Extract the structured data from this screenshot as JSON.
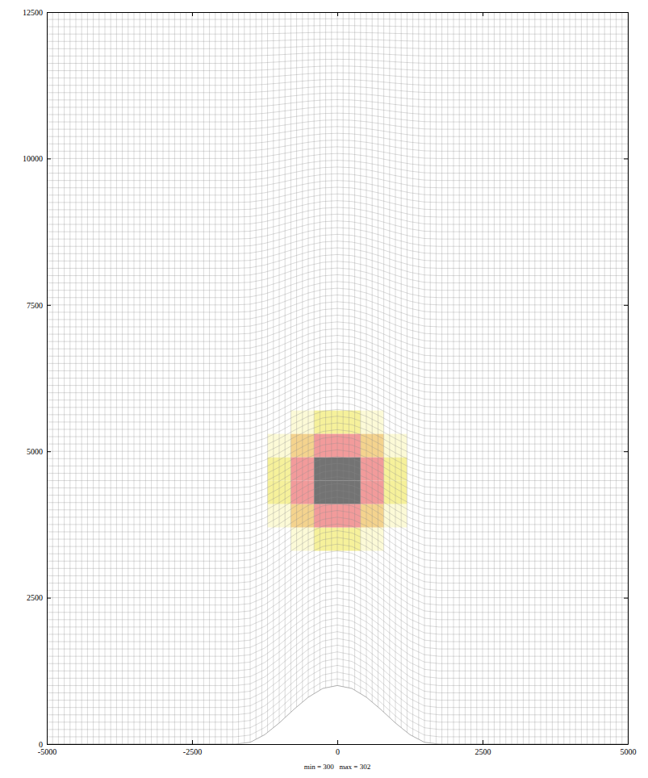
{
  "chart_data": {
    "type": "heatmap",
    "caption": "min = 300   max = 302",
    "xlim": [
      -5000,
      5000
    ],
    "xticks": [
      -5000,
      -2500,
      0,
      2500,
      5000
    ],
    "ylim": [
      0,
      12500
    ],
    "yticks": [
      0,
      2500,
      5000,
      7500,
      10000,
      12500
    ],
    "color_range": [
      300,
      302
    ],
    "terrain": {
      "x": [
        -5000,
        -4000,
        -3000,
        -2000,
        -1750,
        -1500,
        -1250,
        -1000,
        -750,
        -500,
        -250,
        0,
        250,
        500,
        750,
        1000,
        1250,
        1500,
        1750,
        2000,
        3000,
        4000,
        5000
      ],
      "y": [
        0,
        0,
        0,
        0,
        0,
        30,
        160,
        360,
        590,
        800,
        950,
        1000,
        950,
        800,
        590,
        360,
        160,
        30,
        0,
        0,
        0,
        0,
        0
      ]
    },
    "cells": {
      "x_edges": [
        -2000,
        -1600,
        -1200,
        -800,
        -400,
        0,
        400,
        800,
        1200,
        1600,
        2000
      ],
      "y_edges": [
        2500,
        2900,
        3300,
        3700,
        4100,
        4500,
        4900,
        5300,
        5700,
        6100,
        6500
      ],
      "values": [
        [
          300,
          300,
          300,
          300,
          300,
          300,
          300,
          300,
          300,
          300
        ],
        [
          300,
          300,
          300,
          300,
          300,
          300,
          300,
          300,
          300,
          300
        ],
        [
          300,
          300,
          300,
          300.2,
          300.5,
          300.5,
          300.2,
          300,
          300,
          300
        ],
        [
          300,
          300,
          300.2,
          300.8,
          301.2,
          301.2,
          300.8,
          300.2,
          300,
          300
        ],
        [
          300,
          300,
          300.5,
          301.2,
          301.8,
          301.8,
          301.2,
          300.5,
          300,
          300
        ],
        [
          300,
          300,
          300.5,
          301.2,
          301.8,
          301.8,
          301.2,
          300.5,
          300,
          300
        ],
        [
          300,
          300,
          300.2,
          300.8,
          301.2,
          301.2,
          300.8,
          300.2,
          300,
          300
        ],
        [
          300,
          300,
          300,
          300.2,
          300.5,
          300.5,
          300.2,
          300,
          300,
          300
        ],
        [
          300,
          300,
          300,
          300,
          300,
          300,
          300,
          300,
          300,
          300
        ],
        [
          300,
          300,
          300,
          300,
          300,
          300,
          300,
          300,
          300,
          300
        ]
      ]
    }
  }
}
